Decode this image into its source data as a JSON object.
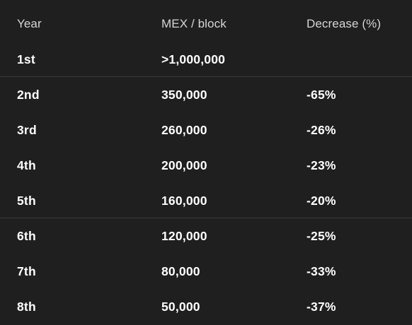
{
  "table": {
    "headers": [
      "Year",
      "MEX / block",
      "Decrease (%)"
    ],
    "rows": [
      {
        "year": "1st",
        "mex": ">1,000,000",
        "decrease": ""
      },
      {
        "year": "2nd",
        "mex": "350,000",
        "decrease": "-65%"
      },
      {
        "year": "3rd",
        "mex": "260,000",
        "decrease": "-26%"
      },
      {
        "year": "4th",
        "mex": "200,000",
        "decrease": "-23%"
      },
      {
        "year": "5th",
        "mex": "160,000",
        "decrease": "-20%"
      },
      {
        "year": "6th",
        "mex": "120,000",
        "decrease": "-25%"
      },
      {
        "year": "7th",
        "mex": "80,000",
        "decrease": "-33%"
      },
      {
        "year": "8th",
        "mex": "50,000",
        "decrease": "-37%"
      }
    ]
  }
}
